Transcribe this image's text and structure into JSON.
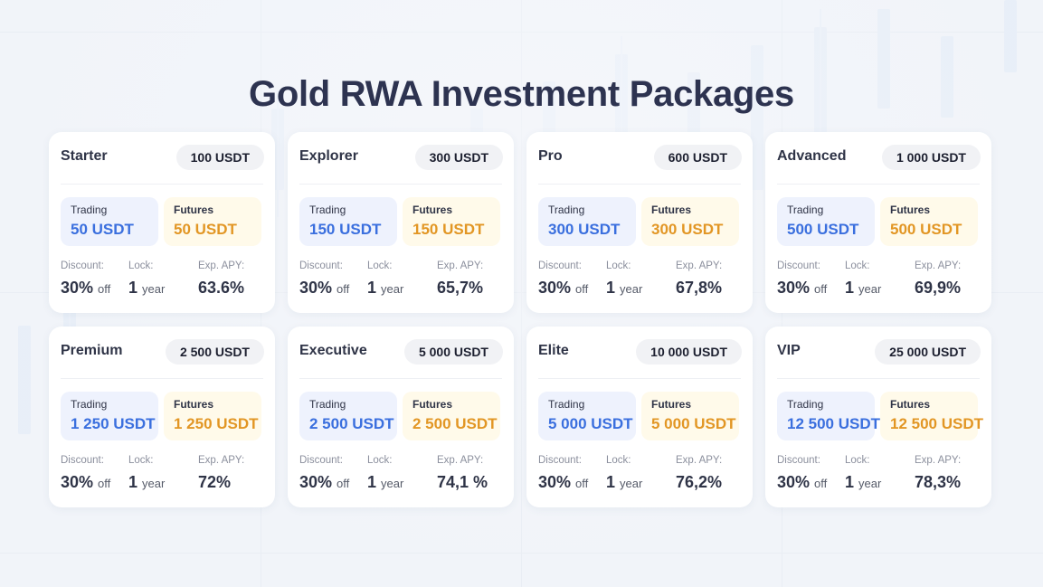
{
  "page": {
    "title": "Gold RWA Investment Packages"
  },
  "labels": {
    "trading": "Trading",
    "futures": "Futures",
    "discount": "Discount:",
    "lock": "Lock:",
    "apy": "Exp. APY:",
    "off": "off",
    "year": "year"
  },
  "packages": [
    {
      "name": "Starter",
      "price": "100 USDT",
      "trading": "50 USDT",
      "futures": "50 USDT",
      "discount": "30%",
      "lock": "1",
      "apy": "63.6%"
    },
    {
      "name": "Explorer",
      "price": "300 USDT",
      "trading": "150 USDT",
      "futures": "150 USDT",
      "discount": "30%",
      "lock": "1",
      "apy": "65,7%"
    },
    {
      "name": "Pro",
      "price": "600 USDT",
      "trading": "300 USDT",
      "futures": "300 USDT",
      "discount": "30%",
      "lock": "1",
      "apy": "67,8%"
    },
    {
      "name": "Advanced",
      "price": "1 000 USDT",
      "trading": "500 USDT",
      "futures": "500 USDT",
      "discount": "30%",
      "lock": "1",
      "apy": "69,9%"
    },
    {
      "name": "Premium",
      "price": "2 500 USDT",
      "trading": "1 250 USDT",
      "futures": "1 250 USDT",
      "discount": "30%",
      "lock": "1",
      "apy": "72%"
    },
    {
      "name": "Executive",
      "price": "5 000 USDT",
      "trading": "2 500 USDT",
      "futures": "2 500 USDT",
      "discount": "30%",
      "lock": "1",
      "apy": "74,1 %"
    },
    {
      "name": "Elite",
      "price": "10 000 USDT",
      "trading": "5 000 USDT",
      "futures": "5 000 USDT",
      "discount": "30%",
      "lock": "1",
      "apy": "76,2%"
    },
    {
      "name": "VIP",
      "price": "25 000 USDT",
      "trading": "12 500 USDT",
      "futures": "12 500 USDT",
      "discount": "30%",
      "lock": "1",
      "apy": "78,3%"
    }
  ],
  "colors": {
    "title": "#2d3350",
    "trading_accent": "#3a6fde",
    "futures_accent": "#e29624",
    "trading_bg": "#eef2fd",
    "futures_bg": "#fffaea"
  }
}
